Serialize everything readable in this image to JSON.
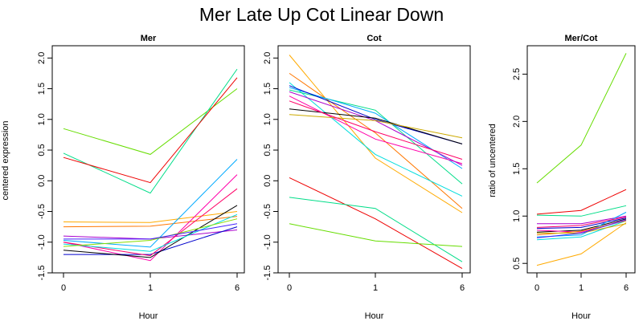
{
  "page_title": "Mer Late Up Cot Linear Down",
  "chart_data": [
    {
      "type": "line",
      "title": "Mer",
      "xlabel": "Hour",
      "ylabel": "centered expression",
      "x": [
        "0",
        "1",
        "6"
      ],
      "ylim": [
        -1.5,
        2.2
      ],
      "yticks": [
        "-1.5",
        "-1.0",
        "-0.5",
        "0.0",
        "0.5",
        "1.0",
        "1.5",
        "2.0"
      ],
      "grid": false,
      "legend": "none",
      "series": [
        {
          "color": "#66dd00",
          "values": [
            0.85,
            0.43,
            1.5
          ]
        },
        {
          "color": "#00dd88",
          "values": [
            0.45,
            -0.2,
            1.82
          ]
        },
        {
          "color": "#ee0000",
          "values": [
            0.38,
            -0.03,
            1.68
          ]
        },
        {
          "color": "#ffaa00",
          "values": [
            -0.67,
            -0.68,
            -0.5
          ]
        },
        {
          "color": "#ff7700",
          "values": [
            -0.75,
            -0.74,
            -0.58
          ]
        },
        {
          "color": "#00aaff",
          "values": [
            -0.97,
            -1.08,
            0.35
          ]
        },
        {
          "color": "#ff00aa",
          "values": [
            -1.0,
            -1.3,
            0.1
          ]
        },
        {
          "color": "#aa00cc",
          "values": [
            -0.9,
            -0.95,
            -0.8
          ]
        },
        {
          "color": "#0000cc",
          "values": [
            -1.2,
            -1.2,
            -0.75
          ]
        },
        {
          "color": "#000000",
          "values": [
            -1.13,
            -1.25,
            -0.4
          ]
        },
        {
          "color": "#ff0066",
          "values": [
            -1.0,
            -1.22,
            -0.13
          ]
        },
        {
          "color": "#00dddd",
          "values": [
            -1.03,
            -1.15,
            -0.55
          ]
        },
        {
          "color": "#88dd00",
          "values": [
            -1.07,
            -0.97,
            -0.62
          ]
        },
        {
          "color": "#4422ff",
          "values": [
            -0.95,
            -0.95,
            -0.7
          ]
        }
      ]
    },
    {
      "type": "line",
      "title": "Cot",
      "xlabel": "Hour",
      "ylabel": "",
      "x": [
        "0",
        "1",
        "6"
      ],
      "ylim": [
        -1.5,
        2.2
      ],
      "yticks": [
        "-1.5",
        "-1.0",
        "-0.5",
        "0.0",
        "0.5",
        "1.0",
        "1.5",
        "2.0"
      ],
      "grid": false,
      "legend": "none",
      "series": [
        {
          "color": "#ffaa00",
          "values": [
            2.05,
            0.37,
            -0.52
          ]
        },
        {
          "color": "#ff7700",
          "values": [
            1.75,
            0.78,
            -0.45
          ]
        },
        {
          "color": "#00dddd",
          "values": [
            1.6,
            0.43,
            -0.25
          ]
        },
        {
          "color": "#00dd88",
          "values": [
            1.48,
            1.15,
            -0.05
          ]
        },
        {
          "color": "#00aaff",
          "values": [
            1.52,
            1.1,
            0.2
          ]
        },
        {
          "color": "#ff00aa",
          "values": [
            1.38,
            0.68,
            0.28
          ]
        },
        {
          "color": "#aa00cc",
          "values": [
            1.45,
            0.98,
            0.25
          ]
        },
        {
          "color": "#0000cc",
          "values": [
            1.55,
            1.0,
            0.6
          ]
        },
        {
          "color": "#000000",
          "values": [
            1.17,
            1.02,
            0.6
          ]
        },
        {
          "color": "#ccaa00",
          "values": [
            1.08,
            0.98,
            0.7
          ]
        },
        {
          "color": "#ff0066",
          "values": [
            1.3,
            0.8,
            0.35
          ]
        },
        {
          "color": "#ee0000",
          "values": [
            0.05,
            -0.62,
            -1.43
          ]
        },
        {
          "color": "#00dd88",
          "values": [
            -0.27,
            -0.45,
            -1.32
          ]
        },
        {
          "color": "#66dd00",
          "values": [
            -0.7,
            -0.98,
            -1.07
          ]
        }
      ]
    },
    {
      "type": "line",
      "title": "Mer/Cot",
      "xlabel": "Hour",
      "ylabel": "ratio of uncentered",
      "x": [
        "0",
        "1",
        "6"
      ],
      "ylim": [
        0.4,
        2.8
      ],
      "yticks": [
        "0.5",
        "1.0",
        "1.5",
        "2.0",
        "2.5"
      ],
      "grid": false,
      "legend": "none",
      "series": [
        {
          "color": "#66dd00",
          "values": [
            1.35,
            1.75,
            2.72
          ]
        },
        {
          "color": "#ee0000",
          "values": [
            1.02,
            1.06,
            1.28
          ]
        },
        {
          "color": "#00dd88",
          "values": [
            1.01,
            1.0,
            1.11
          ]
        },
        {
          "color": "#ffaa00",
          "values": [
            0.48,
            0.6,
            0.93
          ]
        },
        {
          "color": "#aa00cc",
          "values": [
            0.92,
            0.92,
            1.0
          ]
        },
        {
          "color": "#0000cc",
          "values": [
            0.87,
            0.88,
            0.98
          ]
        },
        {
          "color": "#000000",
          "values": [
            0.83,
            0.85,
            0.97
          ]
        },
        {
          "color": "#00aaff",
          "values": [
            0.78,
            0.8,
            1.04
          ]
        },
        {
          "color": "#ff00aa",
          "values": [
            0.85,
            0.83,
            0.96
          ]
        },
        {
          "color": "#00dddd",
          "values": [
            0.75,
            0.78,
            0.95
          ]
        },
        {
          "color": "#ff7700",
          "values": [
            0.8,
            0.84,
            0.95
          ]
        },
        {
          "color": "#ccaa00",
          "values": [
            0.82,
            0.82,
            0.92
          ]
        },
        {
          "color": "#ff0066",
          "values": [
            0.88,
            0.9,
            0.99
          ]
        },
        {
          "color": "#4422ff",
          "values": [
            0.77,
            0.82,
            0.96
          ]
        }
      ]
    }
  ]
}
